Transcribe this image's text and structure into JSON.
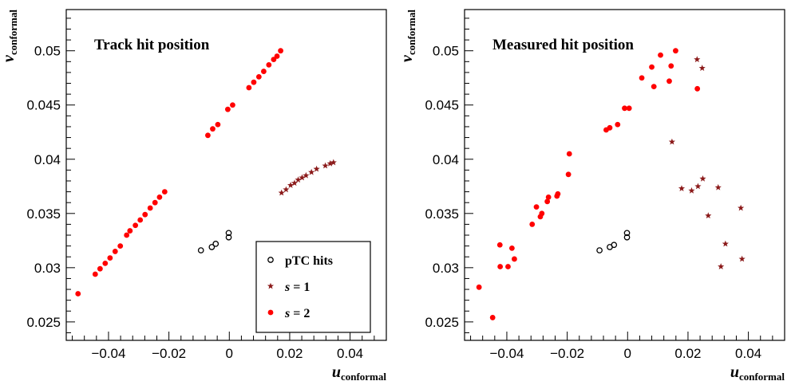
{
  "colors": {
    "s2": "#ff0000",
    "s1": "#8b1a1a",
    "ptc": "#000000",
    "frame": "#000000"
  },
  "chart_data": [
    {
      "type": "scatter",
      "title": "Track hit position",
      "xlabel": {
        "main": "u",
        "sub": "conformal"
      },
      "ylabel": {
        "main": "v",
        "sub": "conformal"
      },
      "xlim": [
        -0.054,
        0.052
      ],
      "ylim": [
        0.0233,
        0.0538
      ],
      "x_ticks": [
        -0.04,
        -0.02,
        0,
        0.02,
        0.04
      ],
      "x_tick_labels": [
        "−0.04",
        "−0.02",
        "0",
        "0.02",
        "0.04"
      ],
      "y_ticks": [
        0.025,
        0.03,
        0.035,
        0.04,
        0.045,
        0.05
      ],
      "y_tick_labels": [
        "0.025",
        "0.03",
        "0.035",
        "0.04",
        "0.045",
        "0.05"
      ],
      "legend": {
        "position": "bottom-right",
        "entries": [
          {
            "series": "ptc",
            "var": "",
            "text": "pTC hits"
          },
          {
            "series": "s1",
            "var": "s",
            "text": " = 1"
          },
          {
            "series": "s2",
            "var": "s",
            "text": " = 2"
          }
        ]
      },
      "series": [
        {
          "key": "s2",
          "marker": "filled-circle",
          "points": [
            [
              -0.0501,
              0.0276
            ],
            [
              -0.0444,
              0.0294
            ],
            [
              -0.0428,
              0.0299
            ],
            [
              -0.0411,
              0.0304
            ],
            [
              -0.0395,
              0.0309
            ],
            [
              -0.0378,
              0.0315
            ],
            [
              -0.0361,
              0.032
            ],
            [
              -0.034,
              0.033
            ],
            [
              -0.0329,
              0.0334
            ],
            [
              -0.0311,
              0.0339
            ],
            [
              -0.0295,
              0.0344
            ],
            [
              -0.0279,
              0.0349
            ],
            [
              -0.0262,
              0.0355
            ],
            [
              -0.0246,
              0.036
            ],
            [
              -0.0231,
              0.0365
            ],
            [
              -0.0214,
              0.037
            ],
            [
              -0.0071,
              0.0422
            ],
            [
              -0.0055,
              0.0428
            ],
            [
              -0.0038,
              0.0432
            ],
            [
              -0.0005,
              0.0446
            ],
            [
              0.0011,
              0.045
            ],
            [
              0.0065,
              0.0466
            ],
            [
              0.0081,
              0.0471
            ],
            [
              0.0098,
              0.0476
            ],
            [
              0.0114,
              0.0481
            ],
            [
              0.0131,
              0.0487
            ],
            [
              0.0147,
              0.0492
            ],
            [
              0.0158,
              0.0495
            ],
            [
              0.017,
              0.05
            ]
          ]
        },
        {
          "key": "s1",
          "marker": "star",
          "points": [
            [
              0.0173,
              0.0369
            ],
            [
              0.0188,
              0.0372
            ],
            [
              0.0203,
              0.0376
            ],
            [
              0.0216,
              0.0378
            ],
            [
              0.0228,
              0.0381
            ],
            [
              0.0241,
              0.0383
            ],
            [
              0.0254,
              0.0385
            ],
            [
              0.0272,
              0.0388
            ],
            [
              0.0289,
              0.0391
            ],
            [
              0.0318,
              0.0394
            ],
            [
              0.0334,
              0.0396
            ],
            [
              0.0345,
              0.0397
            ]
          ]
        },
        {
          "key": "ptc",
          "marker": "open-circle",
          "points": [
            [
              -0.0094,
              0.0316
            ],
            [
              -0.0058,
              0.0319
            ],
            [
              -0.0045,
              0.0322
            ],
            [
              -0.0002,
              0.0328
            ],
            [
              -0.0002,
              0.0332
            ]
          ]
        }
      ]
    },
    {
      "type": "scatter",
      "title": "Measured hit position",
      "xlabel": {
        "main": "u",
        "sub": "conformal"
      },
      "ylabel": {
        "main": "v",
        "sub": "conformal"
      },
      "xlim": [
        -0.054,
        0.052
      ],
      "ylim": [
        0.0233,
        0.0538
      ],
      "x_ticks": [
        -0.04,
        -0.02,
        0,
        0.02,
        0.04
      ],
      "x_tick_labels": [
        "−0.04",
        "−0.02",
        "0",
        "0.02",
        "0.04"
      ],
      "y_ticks": [
        0.025,
        0.03,
        0.035,
        0.04,
        0.045,
        0.05
      ],
      "y_tick_labels": [
        "0.025",
        "0.03",
        "0.035",
        "0.04",
        "0.045",
        "0.05"
      ],
      "legend": null,
      "series": [
        {
          "key": "s2",
          "marker": "filled-circle",
          "points": [
            [
              -0.0492,
              0.0282
            ],
            [
              -0.0447,
              0.0254
            ],
            [
              -0.0423,
              0.0321
            ],
            [
              -0.0422,
              0.0301
            ],
            [
              -0.0396,
              0.0301
            ],
            [
              -0.0383,
              0.0318
            ],
            [
              -0.0375,
              0.0308
            ],
            [
              -0.0316,
              0.034
            ],
            [
              -0.0302,
              0.0356
            ],
            [
              -0.0289,
              0.0347
            ],
            [
              -0.0284,
              0.035
            ],
            [
              -0.0266,
              0.0361
            ],
            [
              -0.0262,
              0.0365
            ],
            [
              -0.0234,
              0.0366
            ],
            [
              -0.0231,
              0.0368
            ],
            [
              -0.0196,
              0.0386
            ],
            [
              -0.0193,
              0.0405
            ],
            [
              -0.0071,
              0.0427
            ],
            [
              -0.0059,
              0.0429
            ],
            [
              -0.0033,
              0.0432
            ],
            [
              -0.001,
              0.0447
            ],
            [
              0.0005,
              0.0447
            ],
            [
              0.0047,
              0.0475
            ],
            [
              0.008,
              0.0485
            ],
            [
              0.0087,
              0.0467
            ],
            [
              0.0109,
              0.0496
            ],
            [
              0.0138,
              0.0472
            ],
            [
              0.0144,
              0.0486
            ],
            [
              0.0159,
              0.05
            ],
            [
              0.0231,
              0.0465
            ]
          ]
        },
        {
          "key": "s1",
          "marker": "star",
          "points": [
            [
              0.023,
              0.0492
            ],
            [
              0.0247,
              0.0484
            ],
            [
              0.0147,
              0.0416
            ],
            [
              0.0249,
              0.0382
            ],
            [
              0.0233,
              0.0375
            ],
            [
              0.0179,
              0.0373
            ],
            [
              0.0212,
              0.0371
            ],
            [
              0.03,
              0.0374
            ],
            [
              0.0267,
              0.0348
            ],
            [
              0.0375,
              0.0355
            ],
            [
              0.0324,
              0.0322
            ],
            [
              0.0309,
              0.0301
            ],
            [
              0.0379,
              0.0308
            ]
          ]
        },
        {
          "key": "ptc",
          "marker": "open-circle",
          "points": [
            [
              -0.0093,
              0.0316
            ],
            [
              -0.0059,
              0.0319
            ],
            [
              -0.0045,
              0.0321
            ],
            [
              -0.0002,
              0.0328
            ],
            [
              -0.0002,
              0.0332
            ]
          ]
        }
      ]
    }
  ]
}
